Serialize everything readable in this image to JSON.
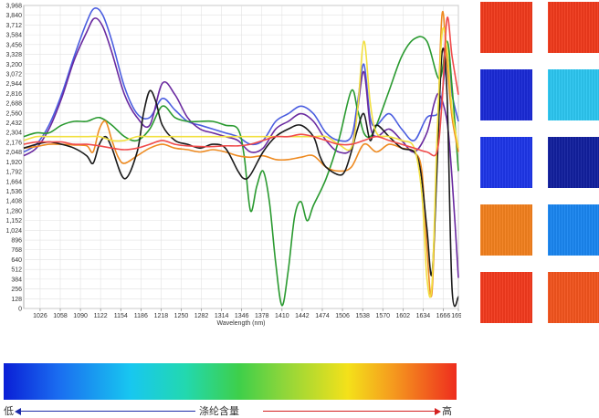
{
  "chart_data": {
    "type": "line",
    "xlabel": "Wavelength (nm)",
    "ylabel": "",
    "xlim": [
      1000,
      1690
    ],
    "ylim": [
      0,
      3968
    ],
    "grid": true,
    "x_ticks": [
      "1026",
      "1058",
      "1090",
      "1122",
      "1154",
      "1186",
      "1218",
      "1250",
      "1282",
      "1314",
      "1346",
      "1378",
      "1410",
      "1442",
      "1474",
      "1506",
      "1538",
      "1570",
      "1602",
      "1634",
      "1666",
      "1690"
    ],
    "y_ticks": [
      "0",
      "128",
      "256",
      "384",
      "512",
      "640",
      "768",
      "896",
      "1,024",
      "1,152",
      "1,280",
      "1,408",
      "1,536",
      "1,664",
      "1,792",
      "1,920",
      "2,048",
      "2,176",
      "2,304",
      "2,432",
      "2,560",
      "2,688",
      "2,816",
      "2,944",
      "3,072",
      "3,200",
      "3,328",
      "3,456",
      "3,584",
      "3,712",
      "3,840",
      "3,968"
    ],
    "series": [
      {
        "color": "#4a5de0",
        "x": [
          1000,
          1020,
          1040,
          1060,
          1080,
          1100,
          1112,
          1125,
          1140,
          1160,
          1180,
          1200,
          1220,
          1240,
          1260,
          1280,
          1300,
          1320,
          1340,
          1360,
          1380,
          1400,
          1420,
          1440,
          1460,
          1480,
          1500,
          1520,
          1530,
          1540,
          1550,
          1560,
          1580,
          1600,
          1620,
          1640,
          1660,
          1672,
          1680,
          1690
        ],
        "y": [
          2050,
          2150,
          2400,
          2800,
          3300,
          3750,
          3930,
          3850,
          3500,
          2900,
          2550,
          2500,
          2750,
          2600,
          2450,
          2400,
          2350,
          2300,
          2250,
          2150,
          2200,
          2450,
          2550,
          2650,
          2550,
          2300,
          2200,
          2250,
          2700,
          3200,
          2500,
          2400,
          2550,
          2350,
          2200,
          2500,
          2600,
          3300,
          2800,
          2450
        ]
      },
      {
        "color": "#6a2aa0",
        "x": [
          1000,
          1020,
          1040,
          1060,
          1080,
          1100,
          1112,
          1125,
          1140,
          1160,
          1180,
          1200,
          1220,
          1240,
          1260,
          1280,
          1300,
          1320,
          1340,
          1360,
          1380,
          1400,
          1420,
          1440,
          1460,
          1480,
          1500,
          1520,
          1530,
          1540,
          1550,
          1560,
          1580,
          1600,
          1620,
          1640,
          1652,
          1660,
          1672,
          1680,
          1690
        ],
        "y": [
          2000,
          2100,
          2350,
          2750,
          3250,
          3620,
          3800,
          3700,
          3350,
          2800,
          2500,
          2400,
          2950,
          2800,
          2500,
          2350,
          2300,
          2250,
          2200,
          2050,
          2100,
          2350,
          2450,
          2550,
          2450,
          2200,
          2050,
          2100,
          2600,
          3100,
          2400,
          2250,
          2350,
          2200,
          2050,
          2300,
          2700,
          2800,
          2450,
          1700,
          400
        ]
      },
      {
        "color": "#2a9a30",
        "x": [
          1000,
          1020,
          1040,
          1060,
          1080,
          1100,
          1120,
          1140,
          1160,
          1180,
          1200,
          1220,
          1240,
          1260,
          1280,
          1300,
          1320,
          1340,
          1350,
          1360,
          1370,
          1380,
          1390,
          1400,
          1410,
          1420,
          1430,
          1440,
          1450,
          1460,
          1480,
          1500,
          1520,
          1530,
          1540,
          1550,
          1560,
          1580,
          1600,
          1620,
          1640,
          1660,
          1672,
          1680,
          1690
        ],
        "y": [
          2250,
          2300,
          2300,
          2400,
          2450,
          2450,
          2500,
          2400,
          2250,
          2200,
          2350,
          2650,
          2500,
          2450,
          2450,
          2450,
          2400,
          2350,
          2000,
          1280,
          1600,
          1800,
          1400,
          600,
          40,
          500,
          1200,
          1400,
          1150,
          1350,
          1700,
          2200,
          2850,
          2600,
          2300,
          2250,
          2400,
          2850,
          3300,
          3530,
          3500,
          3000,
          3500,
          2900,
          1800
        ]
      },
      {
        "color": "#ee8a20",
        "x": [
          1000,
          1020,
          1040,
          1060,
          1080,
          1100,
          1110,
          1120,
          1130,
          1140,
          1150,
          1160,
          1180,
          1200,
          1220,
          1240,
          1260,
          1280,
          1300,
          1320,
          1340,
          1360,
          1380,
          1400,
          1420,
          1440,
          1460,
          1480,
          1500,
          1520,
          1540,
          1560,
          1580,
          1600,
          1620,
          1632,
          1640,
          1648,
          1656,
          1664,
          1672,
          1680,
          1690
        ],
        "y": [
          2100,
          2120,
          2150,
          2150,
          2140,
          2130,
          2050,
          2350,
          2450,
          2200,
          1980,
          1900,
          2000,
          2100,
          2150,
          2100,
          2080,
          2050,
          2080,
          2050,
          2000,
          1980,
          2000,
          1950,
          1950,
          1980,
          2000,
          1850,
          1800,
          1850,
          2150,
          2050,
          2150,
          2100,
          2050,
          1800,
          800,
          200,
          2000,
          3850,
          3200,
          2500,
          2050
        ]
      },
      {
        "color": "#1a1a1a",
        "x": [
          1000,
          1020,
          1040,
          1060,
          1080,
          1100,
          1110,
          1120,
          1130,
          1140,
          1160,
          1180,
          1190,
          1200,
          1210,
          1220,
          1240,
          1260,
          1280,
          1300,
          1320,
          1340,
          1350,
          1360,
          1380,
          1400,
          1420,
          1440,
          1460,
          1470,
          1480,
          1500,
          1510,
          1520,
          1530,
          1540,
          1550,
          1560,
          1580,
          1600,
          1620,
          1630,
          1640,
          1648,
          1656,
          1664,
          1672,
          1680,
          1690
        ],
        "y": [
          2100,
          2150,
          2180,
          2150,
          2100,
          2000,
          1900,
          2150,
          2250,
          2100,
          1700,
          2050,
          2550,
          2850,
          2700,
          2400,
          2200,
          2150,
          2100,
          2150,
          2100,
          1800,
          1700,
          1750,
          2050,
          2250,
          2350,
          2400,
          2250,
          2000,
          1850,
          1750,
          1800,
          2050,
          2350,
          2550,
          2200,
          2400,
          2250,
          2100,
          2050,
          1800,
          1050,
          450,
          1800,
          3350,
          2800,
          250,
          150
        ]
      },
      {
        "color": "#f2e040",
        "x": [
          1000,
          1020,
          1040,
          1060,
          1080,
          1100,
          1120,
          1140,
          1160,
          1180,
          1200,
          1220,
          1240,
          1260,
          1280,
          1300,
          1320,
          1340,
          1360,
          1380,
          1400,
          1420,
          1440,
          1460,
          1480,
          1500,
          1520,
          1530,
          1540,
          1550,
          1560,
          1580,
          1600,
          1620,
          1632,
          1640,
          1648,
          1656,
          1664,
          1672,
          1680,
          1690
        ],
        "y": [
          2200,
          2250,
          2250,
          2250,
          2250,
          2250,
          2250,
          2200,
          2200,
          2250,
          2250,
          2250,
          2250,
          2250,
          2250,
          2250,
          2250,
          2250,
          2250,
          2250,
          2250,
          2250,
          2250,
          2250,
          2250,
          2150,
          2100,
          2600,
          3500,
          2700,
          2300,
          2250,
          2200,
          2100,
          1500,
          400,
          300,
          2200,
          3600,
          3400,
          2600,
          2100
        ]
      },
      {
        "color": "#f04a4a",
        "x": [
          1000,
          1020,
          1040,
          1060,
          1080,
          1100,
          1120,
          1140,
          1160,
          1180,
          1200,
          1220,
          1240,
          1260,
          1280,
          1300,
          1320,
          1340,
          1360,
          1380,
          1400,
          1420,
          1440,
          1460,
          1480,
          1500,
          1520,
          1540,
          1560,
          1580,
          1600,
          1620,
          1640,
          1656,
          1664,
          1672,
          1680,
          1690
        ],
        "y": [
          2150,
          2180,
          2180,
          2180,
          2150,
          2150,
          2130,
          2100,
          2080,
          2100,
          2150,
          2200,
          2150,
          2130,
          2120,
          2120,
          2130,
          2130,
          2150,
          2200,
          2250,
          2250,
          2280,
          2250,
          2200,
          2150,
          2150,
          2200,
          2250,
          2200,
          2150,
          2100,
          2050,
          2050,
          2700,
          3800,
          3300,
          2800
        ]
      }
    ]
  },
  "swatches": {
    "colors": [
      "#f03a1c",
      "#f03a1c",
      "#1a2ad6",
      "#2cc6f0",
      "#1e36e8",
      "#12209e",
      "#f2801e",
      "#1a86f0",
      "#f23a1e",
      "#f2541e"
    ]
  },
  "colorbar": {
    "low_label": "低",
    "mid_label": "涤纶含量",
    "high_label": "高"
  }
}
